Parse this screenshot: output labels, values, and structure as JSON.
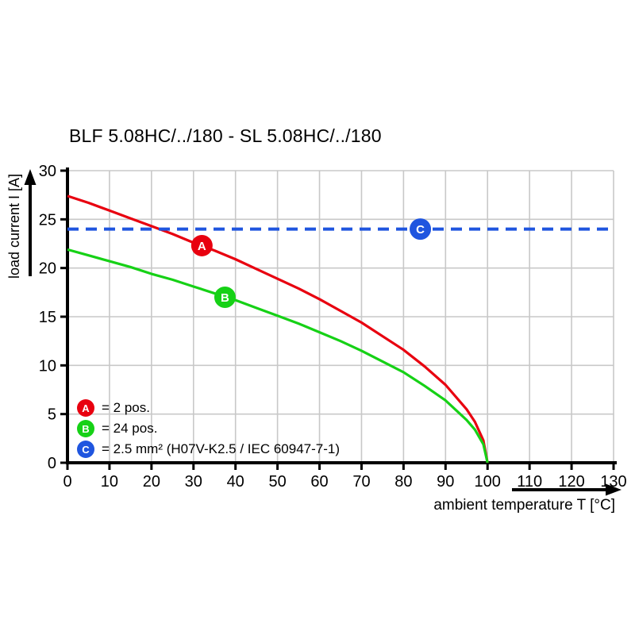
{
  "title": "BLF 5.08HC/../180 - SL 5.08HC/../180",
  "colors": {
    "series_a_red": "#e8000f",
    "series_b_green": "#16d116",
    "series_c_blue": "#1f55df",
    "grid": "#c8c8c8",
    "axis": "#000000"
  },
  "chart_data": {
    "type": "line",
    "title": "BLF 5.08HC/../180 - SL 5.08HC/../180",
    "xlabel": "ambient temperature T [°C]",
    "ylabel": "load current I [A]",
    "xlim": [
      0,
      130
    ],
    "ylim": [
      0,
      30
    ],
    "xticks": [
      0,
      10,
      20,
      30,
      40,
      50,
      60,
      70,
      80,
      90,
      100,
      110,
      120,
      130
    ],
    "yticks": [
      0,
      5,
      10,
      15,
      20,
      25,
      30
    ],
    "grid": true,
    "legend_position": "lower left",
    "series": [
      {
        "name": "A",
        "legend_label": "= 2 pos.",
        "color": "#e8000f",
        "line_style": "solid",
        "marker_point": {
          "x": 32,
          "y": 22.3
        },
        "x": [
          0,
          5,
          10,
          15,
          20,
          25,
          30,
          35,
          40,
          45,
          50,
          55,
          60,
          65,
          70,
          75,
          80,
          85,
          90,
          95,
          97,
          99,
          100
        ],
        "y": [
          27.4,
          26.7,
          25.9,
          25.1,
          24.3,
          23.5,
          22.6,
          21.8,
          20.9,
          19.9,
          18.9,
          17.9,
          16.8,
          15.6,
          14.4,
          13.0,
          11.6,
          9.9,
          8.0,
          5.5,
          4.2,
          2.3,
          0
        ]
      },
      {
        "name": "B",
        "legend_label": "= 24 pos.",
        "color": "#16d116",
        "line_style": "solid",
        "marker_point": {
          "x": 37.5,
          "y": 17.0
        },
        "x": [
          0,
          5,
          10,
          15,
          20,
          25,
          30,
          35,
          40,
          45,
          50,
          55,
          60,
          65,
          70,
          75,
          80,
          85,
          90,
          95,
          97,
          99,
          100
        ],
        "y": [
          21.9,
          21.3,
          20.7,
          20.1,
          19.4,
          18.8,
          18.1,
          17.4,
          16.7,
          15.9,
          15.1,
          14.3,
          13.4,
          12.5,
          11.5,
          10.4,
          9.3,
          7.9,
          6.4,
          4.4,
          3.4,
          1.9,
          0
        ]
      },
      {
        "name": "C",
        "legend_label": "= 2.5 mm² (H07V-K2.5 / IEC 60947-7-1)",
        "color": "#1f55df",
        "line_style": "dashed",
        "marker_point": {
          "x": 84,
          "y": 24
        },
        "x": [
          0,
          130
        ],
        "y": [
          24,
          24
        ]
      }
    ]
  }
}
